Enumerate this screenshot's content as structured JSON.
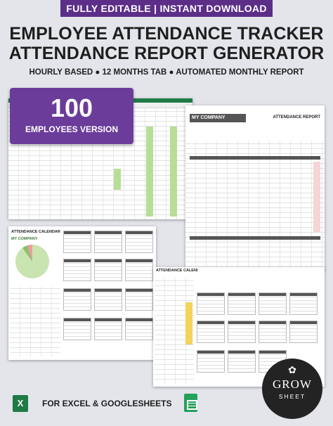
{
  "banner": "FULLY EDITABLE | INSTANT DOWNLOAD",
  "title_line1": "EMPLOYEE ATTENDANCE TRACKER",
  "title_line2": "ATTENDANCE REPORT GENERATOR",
  "subtitle": "HOURLY BASED ● 12 MONTHS TAB ● AUTOMATED MONTHLY REPORT",
  "badge": {
    "number": "100",
    "label": "EMPLOYEES VERSION"
  },
  "report": {
    "company": "MY COMPANY",
    "title": "ATTENDANCE REPORT"
  },
  "calendar": {
    "title": "ATTENDANCE CALENDAR",
    "company": "MY COMPANY",
    "title2": "ATTENDANCE CALENI"
  },
  "footer": "FOR EXCEL & GOOGLESHEETS",
  "logo": {
    "line1": "GROW",
    "line2": "SHEET"
  },
  "colors": {
    "banner": "#5c2e88",
    "badge": "#6b3c9a",
    "excel": "#1f7a45",
    "sheets": "#24a159"
  },
  "icons": {
    "excel": "excel-icon",
    "sheets": "google-sheets-icon",
    "logo": "flower-icon"
  }
}
